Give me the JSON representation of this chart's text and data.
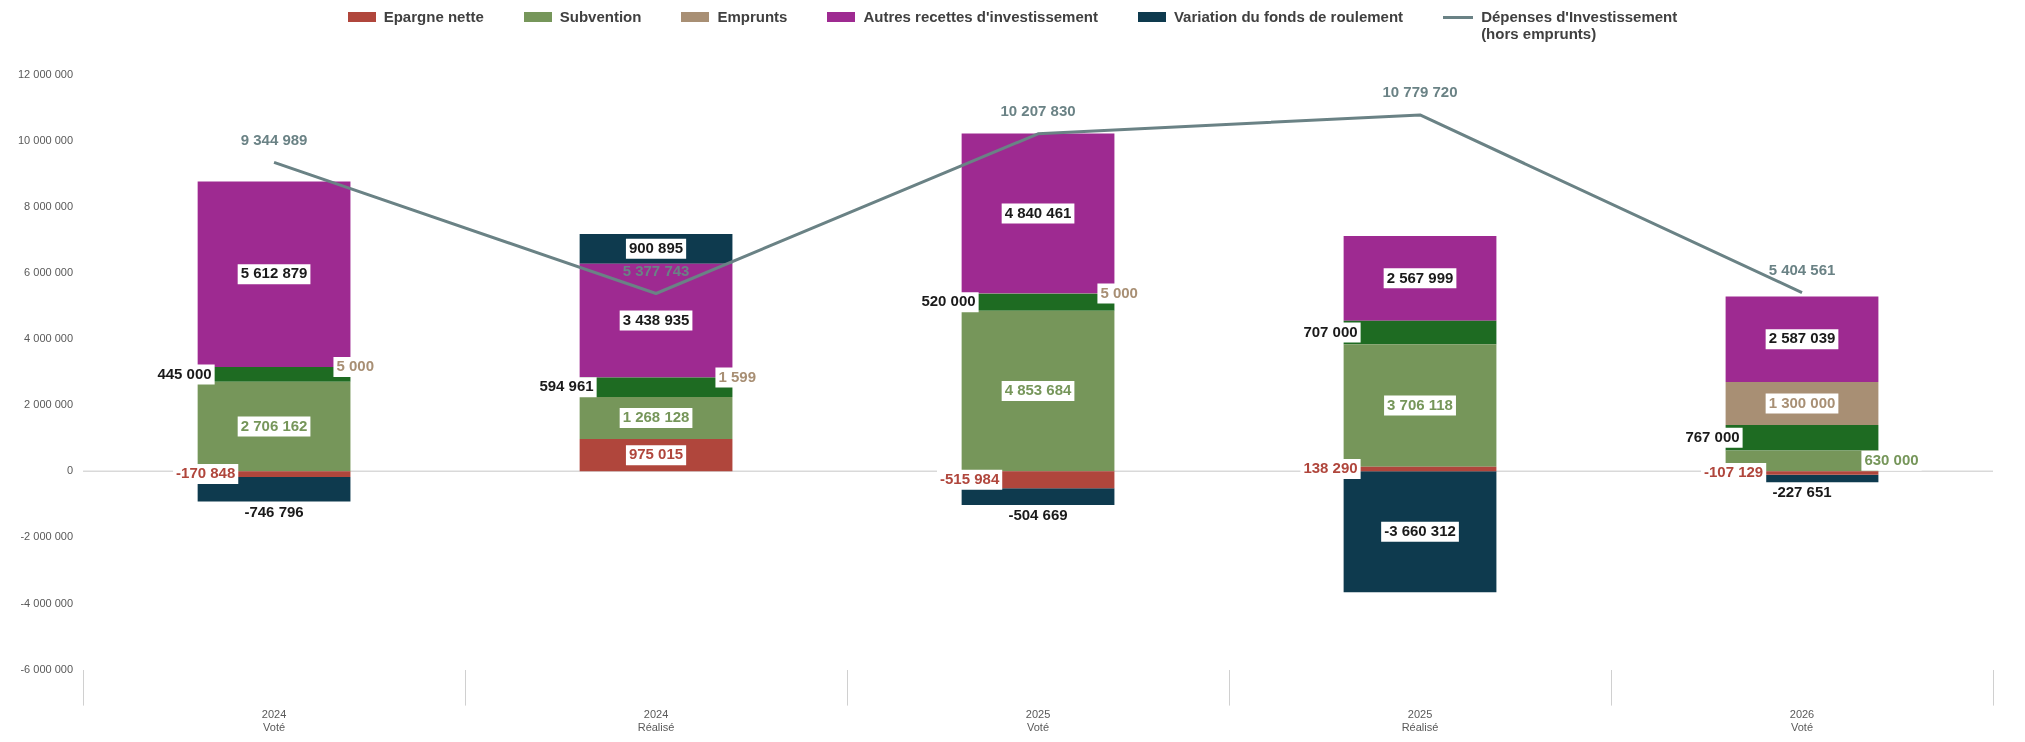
{
  "chart_data": {
    "type": "bar",
    "stacked": true,
    "legend": "top",
    "data_labels": true,
    "categories": [
      "2024\nVoté",
      "2024\nRéalisé",
      "2025\nVoté",
      "2025\nRéalisé",
      "2026\nVoté"
    ],
    "series": [
      {
        "name": "Epargne nette",
        "color": "#b0463c",
        "values": [
          -170848,
          975015,
          -515984,
          138290,
          -107129
        ]
      },
      {
        "name": "Subvention",
        "color": "#76965a",
        "values": [
          2706162,
          1268128,
          4853684,
          3706118,
          630000
        ]
      },
      {
        "color": "#1e6b22",
        "values": [
          445000,
          594961,
          520000,
          707000,
          767000
        ]
      },
      {
        "name": "Emprunts",
        "color": "#a88f74",
        "values": [
          5000,
          1599,
          5000,
          null,
          1300000
        ]
      },
      {
        "name": "Autres recettes d'investissement",
        "color": "#9e2a91",
        "values": [
          5612879,
          3438935,
          4840461,
          2567999,
          2587039
        ]
      },
      {
        "name": "Variation du fonds de roulement",
        "color": "#0e3a4e",
        "values": [
          -746796,
          900895,
          -504669,
          -3660312,
          -227651
        ]
      },
      {
        "name": "Dépenses d'Investissement\n(hors emprunts)",
        "type": "line",
        "color": "#6a8285",
        "marker": "none",
        "values": [
          9344989,
          5377743,
          10207830,
          10779720,
          5404561
        ]
      }
    ],
    "ylim": [
      -6000000,
      12000000
    ],
    "yticks": [
      {
        "value": -6000000,
        "label": "-6 000 000"
      },
      {
        "value": -4000000,
        "label": "-4 000 000"
      },
      {
        "value": -2000000,
        "label": "-2 000 000"
      },
      0,
      {
        "value": 2000000,
        "label": "2 000 000"
      },
      {
        "value": 4000000,
        "label": "4 000 000"
      },
      {
        "value": 6000000,
        "label": "6 000 000"
      },
      {
        "value": 8000000,
        "label": "8 000 000"
      },
      {
        "value": 10000000,
        "label": "10 000 000"
      },
      {
        "value": 12000000,
        "label": "12 000 000"
      }
    ],
    "ref_lines": [
      {
        "axis": "y",
        "value": 0,
        "color": "#d9d9d9"
      }
    ]
  }
}
